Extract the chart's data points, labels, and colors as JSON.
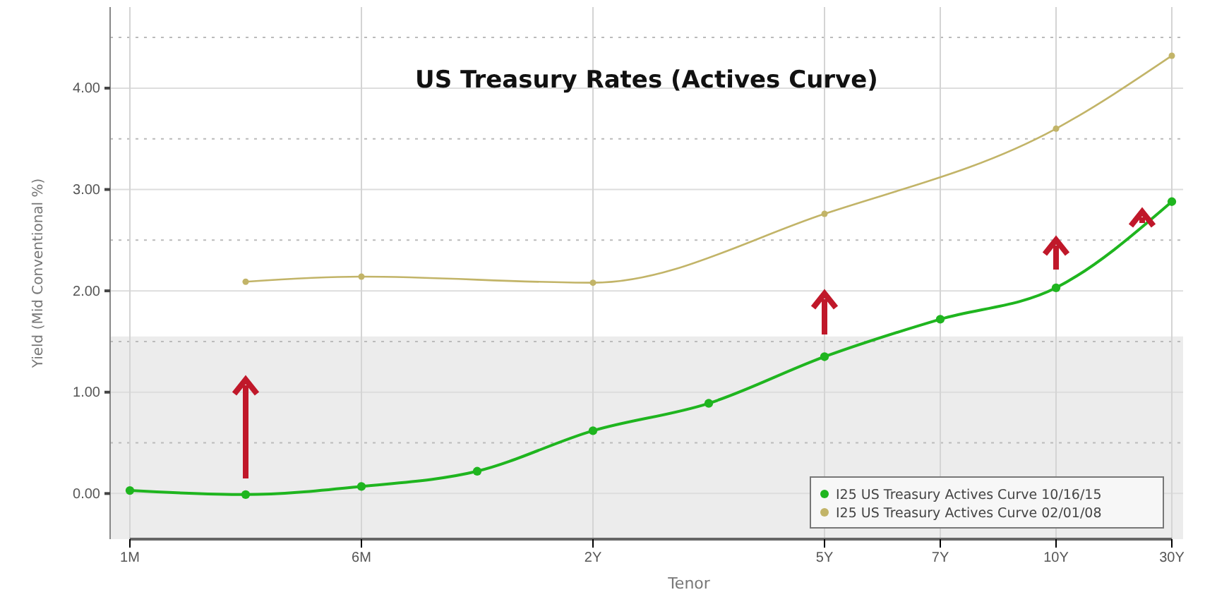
{
  "chart_data": {
    "type": "line",
    "title": "US Treasury Rates (Actives Curve)",
    "xlabel": "Tenor",
    "ylabel": "Yield (Mid Conventional %)",
    "categories": [
      "1M",
      null,
      "6M",
      null,
      "2Y",
      null,
      "5Y",
      "7Y",
      "10Y",
      "30Y"
    ],
    "series": [
      {
        "name": "I25 US Treasury Actives Curve 10/16/15",
        "color": "#1fb51f",
        "values": [
          0.03,
          -0.01,
          0.07,
          0.22,
          0.62,
          0.89,
          1.35,
          1.72,
          2.03,
          2.88
        ]
      },
      {
        "name": "I25 US Treasury Actives Curve 02/01/08",
        "color": "#c2b468",
        "values": [
          null,
          2.09,
          2.14,
          null,
          2.08,
          null,
          2.76,
          null,
          3.6,
          4.32
        ]
      }
    ],
    "ylim": [
      -0.45,
      4.8
    ],
    "yticks": [
      {
        "value": 0,
        "label": "0.00"
      },
      {
        "value": 0.5,
        "label": null
      },
      {
        "value": 1,
        "label": "1.00"
      },
      {
        "value": 1.5,
        "label": null
      },
      {
        "value": 2,
        "label": "2.00"
      },
      {
        "value": 2.5,
        "label": null
      },
      {
        "value": 3,
        "label": "3.00"
      },
      {
        "value": 3.5,
        "label": null
      },
      {
        "value": 4,
        "label": "4.00"
      },
      {
        "value": 4.5,
        "label": null
      }
    ],
    "bands": [
      {
        "axis": "y",
        "from": -0.45,
        "to": 1.55,
        "color": "#ececec"
      }
    ],
    "grid": true,
    "legend": "bottom right",
    "marker": "circle",
    "line_style": "solid"
  }
}
